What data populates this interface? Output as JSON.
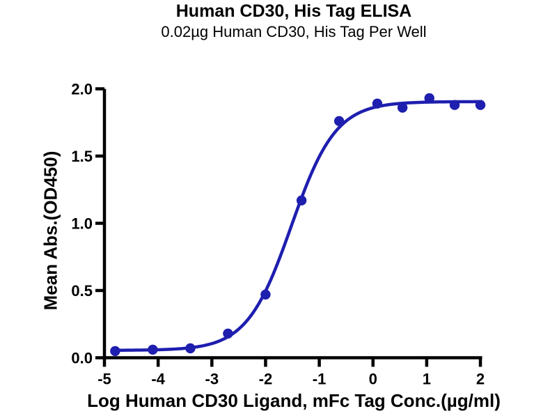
{
  "figure": {
    "title": "Human CD30, His Tag ELISA",
    "subtitle": "0.02µg Human CD30, His Tag Per Well"
  },
  "chart_data": {
    "type": "scatter",
    "title": "Human CD30, His Tag ELISA",
    "subtitle": "0.02µg Human CD30, His Tag Per Well",
    "xlabel": "Log Human CD30 Ligand, mFc Tag Conc.(µg/ml)",
    "ylabel": "Mean Abs.(OD450)",
    "xlim": [
      -5,
      2
    ],
    "ylim": [
      0,
      2
    ],
    "x_ticks": [
      -5,
      -4,
      -3,
      -2,
      -1,
      0,
      1,
      2
    ],
    "x_tick_labels": [
      "-5",
      "-4",
      "-3",
      "-2",
      "-1",
      "0",
      "1",
      "2"
    ],
    "y_ticks": [
      0,
      0.5,
      1,
      1.5,
      2
    ],
    "y_tick_labels": [
      "0.0",
      "0.5",
      "1.0",
      "1.5",
      "2.0"
    ],
    "grid": false,
    "legend_position": "none",
    "axis_color": "#000000",
    "background_color": "#ffffff",
    "series": [
      {
        "name": "Human CD30 Ligand, mFc Tag",
        "color": "#1e1eaf",
        "marker": "circle",
        "points": [
          {
            "x": -4.8,
            "y": 0.05
          },
          {
            "x": -4.1,
            "y": 0.06
          },
          {
            "x": -3.4,
            "y": 0.07
          },
          {
            "x": -2.7,
            "y": 0.18
          },
          {
            "x": -2.0,
            "y": 0.47
          },
          {
            "x": -1.33,
            "y": 1.17
          },
          {
            "x": -0.63,
            "y": 1.76
          },
          {
            "x": 0.08,
            "y": 1.89
          },
          {
            "x": 0.55,
            "y": 1.86
          },
          {
            "x": 1.05,
            "y": 1.93
          },
          {
            "x": 1.52,
            "y": 1.88
          },
          {
            "x": 2.0,
            "y": 1.88
          }
        ],
        "fit_curve": {
          "model": "4PL sigmoid",
          "bottom": 0.055,
          "top": 1.905,
          "log_ec50": -1.52,
          "hill_slope": 1.05,
          "x_start": -4.82,
          "x_end": 2.02
        }
      }
    ]
  }
}
